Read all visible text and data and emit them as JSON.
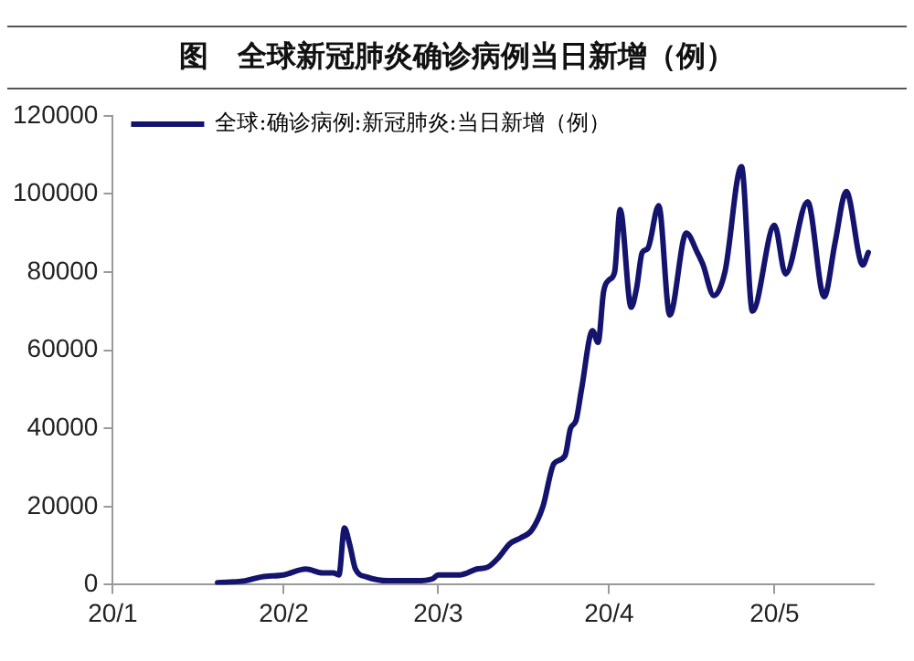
{
  "chart_data": {
    "type": "line",
    "title": "图　全球新冠肺炎确诊病例当日新增（例）",
    "x": [
      "--01-20",
      "--01-25",
      "--01-28",
      "--02-01",
      "--02-05",
      "--02-08",
      "--02-10",
      "--02-11",
      "--02-12",
      "--02-13",
      "--02-14",
      "--02-16",
      "--02-20",
      "--02-25",
      "--02-28",
      "--03-01",
      "--03-05",
      "--03-08",
      "--03-10",
      "--03-12",
      "--03-14",
      "--03-16",
      "--03-18",
      "--03-20",
      "--03-22",
      "--03-24",
      "--03-25",
      "--03-26",
      "--03-27",
      "--03-29",
      "--03-30",
      "--03-31",
      "--04-01",
      "--04-02",
      "--04-03",
      "--04-05",
      "--04-06",
      "--04-07",
      "--04-08",
      "--04-10",
      "--04-12",
      "--04-15",
      "--04-17",
      "--04-18",
      "--04-20",
      "--04-22",
      "--04-25",
      "--04-27",
      "--05-01",
      "--05-03",
      "--05-07",
      "--05-10",
      "--05-12",
      "--05-14",
      "--05-17",
      "--05-18"
    ],
    "series": [
      {
        "name": "全球:确诊病例:新冠肺炎:当日新增（例）",
        "color": "#14146e",
        "values": [
          500,
          1000,
          2000,
          2500,
          4000,
          3000,
          3000,
          2500,
          14500,
          10000,
          4000,
          2000,
          1000,
          1000,
          1500,
          2500,
          2500,
          4000,
          4500,
          7000,
          10500,
          12000,
          14000,
          20000,
          31000,
          33000,
          40000,
          42000,
          50000,
          65000,
          62000,
          75000,
          78000,
          80000,
          96000,
          71000,
          76000,
          85000,
          86000,
          97000,
          69000,
          90000,
          85000,
          82000,
          74000,
          80000,
          107000,
          70000,
          92000,
          79500,
          98000,
          73700,
          87700,
          100600,
          81800,
          85000
        ]
      }
    ],
    "xlim": [
      "--01-01",
      "--05-19"
    ],
    "xticks": [
      {
        "value": "--01-01",
        "label": "20/1"
      },
      {
        "value": "--02-01",
        "label": "20/2"
      },
      {
        "value": "--03-01",
        "label": "20/3"
      },
      {
        "value": "--04-01",
        "label": "20/4"
      },
      {
        "value": "--05-01",
        "label": "20/5"
      }
    ],
    "ylim": [
      0,
      120000
    ],
    "yticks": [
      0,
      20000,
      40000,
      60000,
      80000,
      100000,
      120000
    ],
    "grid": false,
    "legend": "top left",
    "marker": "none",
    "line_style": "solid"
  }
}
